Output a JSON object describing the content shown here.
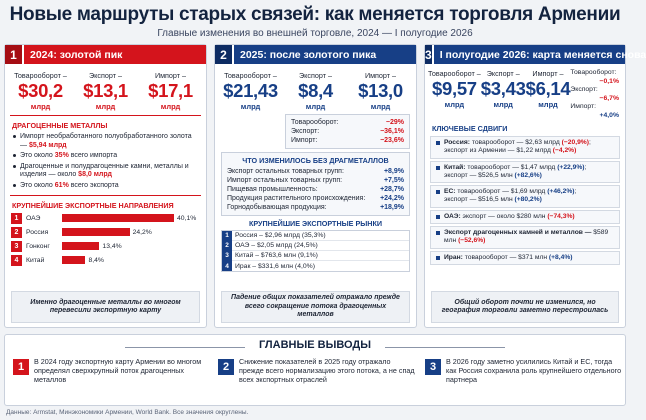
{
  "header": {
    "title": "Новые маршруты старых связей: как меняется торговля Армении",
    "subtitle": "Главные изменения во внешней торговле, 2024 — I полугодие 2026"
  },
  "col1": {
    "num": "1",
    "title": "2024: золотой пик",
    "kpis": [
      {
        "label": "Товарооборот –",
        "value": "$30,2",
        "unit": "млрд"
      },
      {
        "label": "Экспорт –",
        "value": "$13,1",
        "unit": "млрд"
      },
      {
        "label": "Импорт –",
        "value": "$17,1",
        "unit": "млрд"
      }
    ],
    "metals_title": "ДРАГОЦЕННЫЕ МЕТАЛЛЫ",
    "metals": [
      {
        "text": "Импорт необработанного полуобработанного золота — ",
        "hl": "$5,94 млрд",
        "tail": ""
      },
      {
        "text": "Это около ",
        "hl": "35%",
        "tail": " всего импорта"
      },
      {
        "text": "Драгоценные и полудрагоценные камни, металлы и изделия — около ",
        "hl": "$8,0 млрд",
        "tail": ""
      },
      {
        "text": "Это около ",
        "hl": "61%",
        "tail": " всего экспорта"
      }
    ],
    "dest_title": "КРУПНЕЙШИЕ ЭКСПОРТНЫЕ НАПРАВЛЕНИЯ",
    "destinations": [
      {
        "n": "1",
        "name": "ОАЭ",
        "value": 40.1,
        "label": "40,1%"
      },
      {
        "n": "2",
        "name": "Россия",
        "value": 24.2,
        "label": "24,2%"
      },
      {
        "n": "3",
        "name": "Гонконг",
        "value": 13.4,
        "label": "13,4%"
      },
      {
        "n": "4",
        "name": "Китай",
        "value": 8.4,
        "label": "8,4%"
      }
    ],
    "note": "Именно драгоценные металлы во многом перевесили экспортную карту"
  },
  "col2": {
    "num": "2",
    "title": "2025: после золотого пика",
    "kpis": [
      {
        "label": "Товарооборот –",
        "value": "$21,43",
        "unit": "млрд"
      },
      {
        "label": "Экспорт –",
        "value": "$8,4",
        "unit": "млрд"
      },
      {
        "label": "Импорт –",
        "value": "$13,0",
        "unit": "млрд"
      }
    ],
    "changes": [
      {
        "k": "Товарооборот:",
        "v": "−29%"
      },
      {
        "k": "Экспорт:",
        "v": "−36,1%"
      },
      {
        "k": "Импорт:",
        "v": "−23,6%"
      }
    ],
    "wo_title": "ЧТО ИЗМЕНИЛОСЬ БЕЗ ДРАГМЕТАЛЛОВ",
    "wo": [
      {
        "k": "Экспорт остальных товарных групп:",
        "v": "+8,9%"
      },
      {
        "k": "Импорт остальных товарных групп:",
        "v": "+7,5%"
      },
      {
        "k": "Пищевая промышленность:",
        "v": "+28,7%"
      },
      {
        "k": "Продукция растительного происхождения:",
        "v": "+24,2%"
      },
      {
        "k": "Горнодобывающая продукция:",
        "v": "+18,9%"
      }
    ],
    "mk_title": "КРУПНЕЙШИЕ ЭКСПОРТНЫЕ РЫНКИ",
    "markets": [
      {
        "n": "1",
        "text": "Россия – $2,96 млрд (35,3%)"
      },
      {
        "n": "2",
        "text": "ОАЭ – $2,05 млрд (24,5%)"
      },
      {
        "n": "3",
        "text": "Китай – $763,6 млн (9,1%)"
      },
      {
        "n": "4",
        "text": "Ирак – $331,6 млн (4,0%)"
      }
    ],
    "note": "Падение общих показателей отражало прежде всего сокращение потока драгоценных металлов"
  },
  "col3": {
    "num": "3",
    "title": "I полугодие 2026: карта меняется снова",
    "kpis": [
      {
        "label": "Товарооборот –",
        "value": "$9,57",
        "unit": "млрд"
      },
      {
        "label": "Экспорт –",
        "value": "$3,43",
        "unit": "млрд"
      },
      {
        "label": "Импорт –",
        "value": "$6,14",
        "unit": "млрд"
      }
    ],
    "side": [
      {
        "k": "Товарооборот:",
        "v": "−0,1%"
      },
      {
        "k": "Экспорт:",
        "v": "−6,7%"
      },
      {
        "k": "Импорт:",
        "v": "+4,0%"
      }
    ],
    "shifts_title": "КЛЮЧЕВЫЕ СДВИГИ",
    "shifts": [
      {
        "b": "Россия:",
        "l1": " товарооборот — $2,63 млрд ",
        "r1": "(−20,9%)",
        "l2": ";",
        "l3": "экспорт из Армении — $1,22 млрд ",
        "r2": "(−4,2%)",
        "l4": ""
      },
      {
        "b": "Китай:",
        "l1": " товарооборот — $1,47 млрд ",
        "r1": "(+22,9%)",
        "l2": ";",
        "l3": "экспорт — $526,5 млн ",
        "r2": "(+82,6%)",
        "l4": ""
      },
      {
        "b": "ЕС:",
        "l1": " товарооборот — $1,69 млрд ",
        "r1": "(+46,2%)",
        "l2": ";",
        "l3": "экспорт — $516,5 млн ",
        "r2": "(+80,2%)",
        "l4": ""
      },
      {
        "b": "ОАЭ:",
        "l1": " экспорт — около $280 млн ",
        "r1": "(−74,3%)",
        "l2": "",
        "l3": "",
        "r2": "",
        "l4": ""
      },
      {
        "b": "Экспорт драгоценных камней и металлов —",
        "l1": " $589 млн ",
        "r1": "(−52,6%)",
        "l2": "",
        "l3": "",
        "r2": "",
        "l4": ""
      },
      {
        "b": "Иран:",
        "l1": " товарооборот — $371 млн ",
        "r1": "(+8,4%)",
        "l2": "",
        "l3": "",
        "r2": "",
        "l4": ""
      }
    ],
    "note": "Общий оборот почти не изменился, но география торговли заметно перестроилась"
  },
  "conclusions": {
    "title": "ГЛАВНЫЕ ВЫВОДЫ",
    "items": [
      {
        "n": "1",
        "text": "В 2024 году экспортную карту Армении во многом определял сверхкрупный поток драгоценных металлов"
      },
      {
        "n": "2",
        "text": "Снижение показателей в 2025 году отражало прежде всего нормализацию этого потока, а не спад всех экспортных отраслей"
      },
      {
        "n": "3",
        "text": "В 2026 году заметно усилились Китай и ЕС, тогда как Россия сохранила роль крупнейшего отдельного партнера"
      }
    ]
  },
  "source": "Данные: Armstat, Минэкономики Армении, World Bank. Все значения округлены.",
  "colors": {
    "red": "#d4141c",
    "navy": "#173f86"
  }
}
